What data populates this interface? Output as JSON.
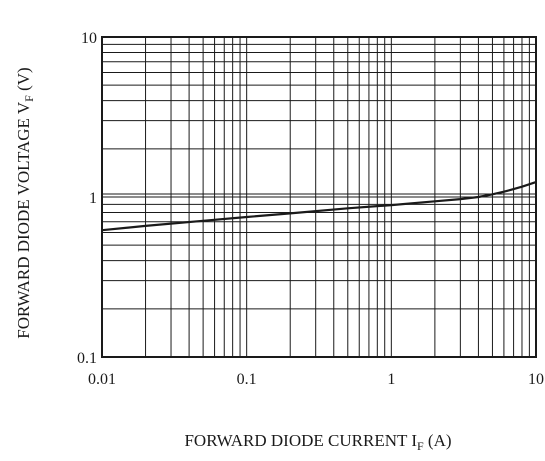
{
  "chart_data": {
    "type": "line",
    "xscale": "log",
    "yscale": "log",
    "xlim": [
      0.01,
      10
    ],
    "ylim": [
      0.1,
      10
    ],
    "grid": true,
    "xlabel_main": "FORWARD DIODE CURRENT  I",
    "xlabel_sub": "F",
    "xlabel_unit": " (A)",
    "ylabel_main": "FORWARD DIODE VOLTAGE  V",
    "ylabel_sub": "F",
    "ylabel_unit": " (V)",
    "xticks": [
      {
        "value": 0.01,
        "label": "0.01"
      },
      {
        "value": 0.1,
        "label": "0.1"
      },
      {
        "value": 1,
        "label": "1"
      },
      {
        "value": 10,
        "label": "10"
      }
    ],
    "yticks": [
      {
        "value": 0.1,
        "label": "0.1"
      },
      {
        "value": 1,
        "label": "1"
      },
      {
        "value": 10,
        "label": "10"
      }
    ],
    "series": [
      {
        "color": "#1a1a1a",
        "x": [
          0.01,
          0.02,
          0.05,
          0.1,
          0.2,
          0.5,
          1,
          2,
          3,
          4,
          5,
          6,
          7,
          8,
          10
        ],
        "y": [
          0.62,
          0.66,
          0.71,
          0.75,
          0.79,
          0.85,
          0.89,
          0.94,
          0.97,
          1.0,
          1.04,
          1.08,
          1.12,
          1.16,
          1.24
        ]
      }
    ]
  }
}
